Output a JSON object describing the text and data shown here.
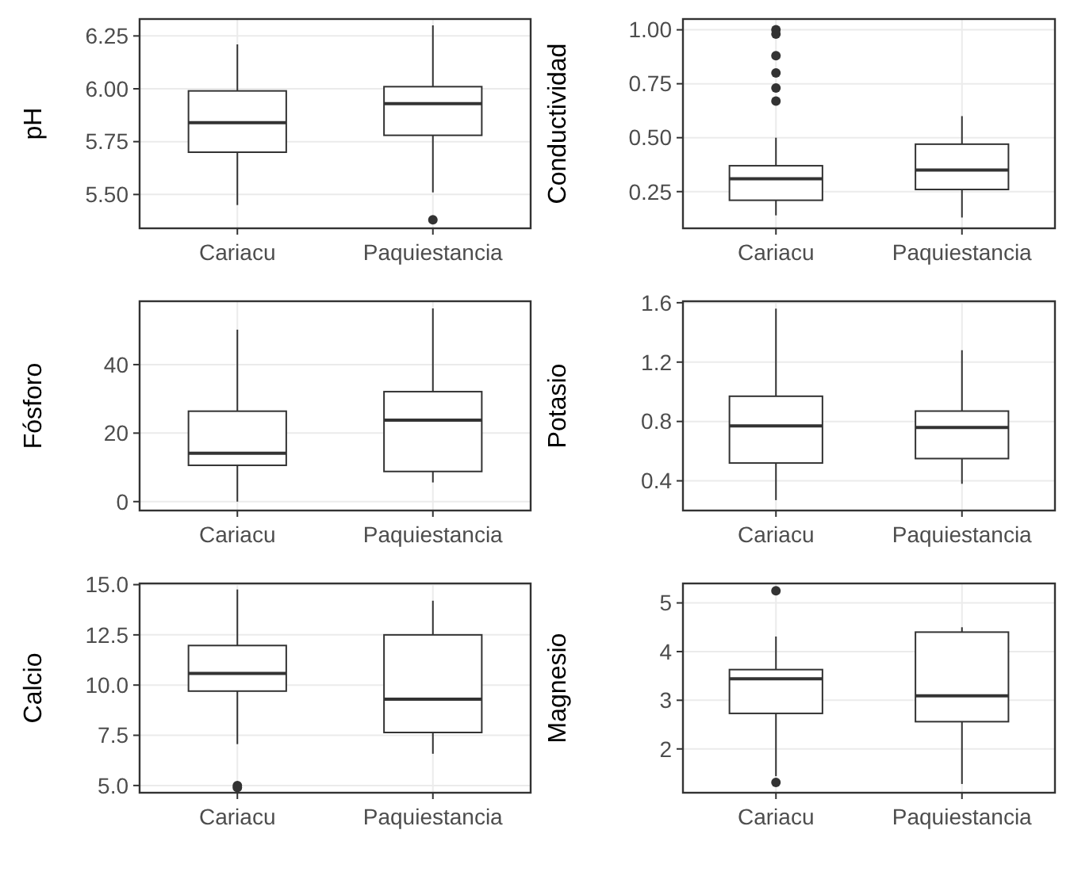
{
  "chart_data": [
    {
      "type": "box",
      "ylabel": "pH",
      "categories": [
        "Cariacu",
        "Paquiestancia"
      ],
      "ylim": [
        5.34,
        6.33
      ],
      "yticks": [
        {
          "value": 5.5,
          "label": "5.50"
        },
        5.75,
        {
          "value": 6,
          "label": "6.00"
        },
        6.25
      ],
      "grid": true,
      "boxes": [
        {
          "low": 5.45,
          "q1": 5.7,
          "median": 5.84,
          "q3": 5.99,
          "high": 6.21
        },
        {
          "low": 5.51,
          "q1": 5.78,
          "median": 5.93,
          "q3": 6.01,
          "high": 6.3,
          "outliers": [
            5.38
          ]
        }
      ]
    },
    {
      "type": "box",
      "ylabel": "Conductividad",
      "categories": [
        "Cariacu",
        "Paquiestancia"
      ],
      "ylim": [
        0.08,
        1.05
      ],
      "yticks": [
        0.25,
        {
          "value": 0.5,
          "label": "0.50"
        },
        0.75,
        {
          "value": 1,
          "label": "1.00"
        }
      ],
      "grid": true,
      "boxes": [
        {
          "low": 0.14,
          "q1": 0.21,
          "median": 0.31,
          "q3": 0.37,
          "high": 0.5,
          "outliers": [
            1.0,
            0.98,
            0.88,
            0.8,
            0.73,
            0.67
          ]
        },
        {
          "low": 0.13,
          "q1": 0.26,
          "median": 0.35,
          "q3": 0.47,
          "high": 0.6
        }
      ]
    },
    {
      "type": "box",
      "ylabel": "Fósforo",
      "categories": [
        "Cariacu",
        "Paquiestancia"
      ],
      "ylim": [
        -2.6,
        58.5
      ],
      "yticks": [
        0,
        20,
        40
      ],
      "grid": true,
      "boxes": [
        {
          "low": 0,
          "q1": 10.6,
          "median": 14.1,
          "q3": 26.4,
          "high": 50.2
        },
        {
          "low": 5.6,
          "q1": 8.8,
          "median": 23.8,
          "q3": 32.1,
          "high": 56.4
        }
      ]
    },
    {
      "type": "box",
      "ylabel": "Potasio",
      "categories": [
        "Cariacu",
        "Paquiestancia"
      ],
      "ylim": [
        0.2,
        1.61
      ],
      "yticks": [
        0.4,
        0.8,
        1.2,
        1.6
      ],
      "grid": true,
      "boxes": [
        {
          "low": 0.27,
          "q1": 0.52,
          "median": 0.77,
          "q3": 0.97,
          "high": 1.56
        },
        {
          "low": 0.38,
          "q1": 0.55,
          "median": 0.76,
          "q3": 0.87,
          "high": 1.28
        }
      ]
    },
    {
      "type": "box",
      "ylabel": "Calcio",
      "categories": [
        "Cariacu",
        "Paquiestancia"
      ],
      "ylim": [
        4.64,
        15.06
      ],
      "yticks": [
        {
          "value": 5,
          "label": "5.0"
        },
        7.5,
        {
          "value": 10,
          "label": "10.0"
        },
        12.5,
        {
          "value": 15,
          "label": "15.0"
        }
      ],
      "grid": true,
      "boxes": [
        {
          "low": 7.06,
          "q1": 9.7,
          "median": 10.58,
          "q3": 11.97,
          "high": 14.76,
          "outliers": [
            5.0,
            4.9
          ]
        },
        {
          "low": 6.58,
          "q1": 7.64,
          "median": 9.3,
          "q3": 12.5,
          "high": 14.2
        }
      ]
    },
    {
      "type": "box",
      "ylabel": "Magnesio",
      "categories": [
        "Cariacu",
        "Paquiestancia"
      ],
      "ylim": [
        1.1,
        5.4
      ],
      "yticks": [
        2,
        3,
        4,
        5
      ],
      "grid": true,
      "boxes": [
        {
          "low": 1.44,
          "q1": 2.73,
          "median": 3.44,
          "q3": 3.63,
          "high": 4.31,
          "outliers": [
            5.25,
            1.31
          ]
        },
        {
          "low": 1.28,
          "q1": 2.56,
          "median": 3.09,
          "q3": 4.4,
          "high": 4.5
        }
      ]
    }
  ]
}
